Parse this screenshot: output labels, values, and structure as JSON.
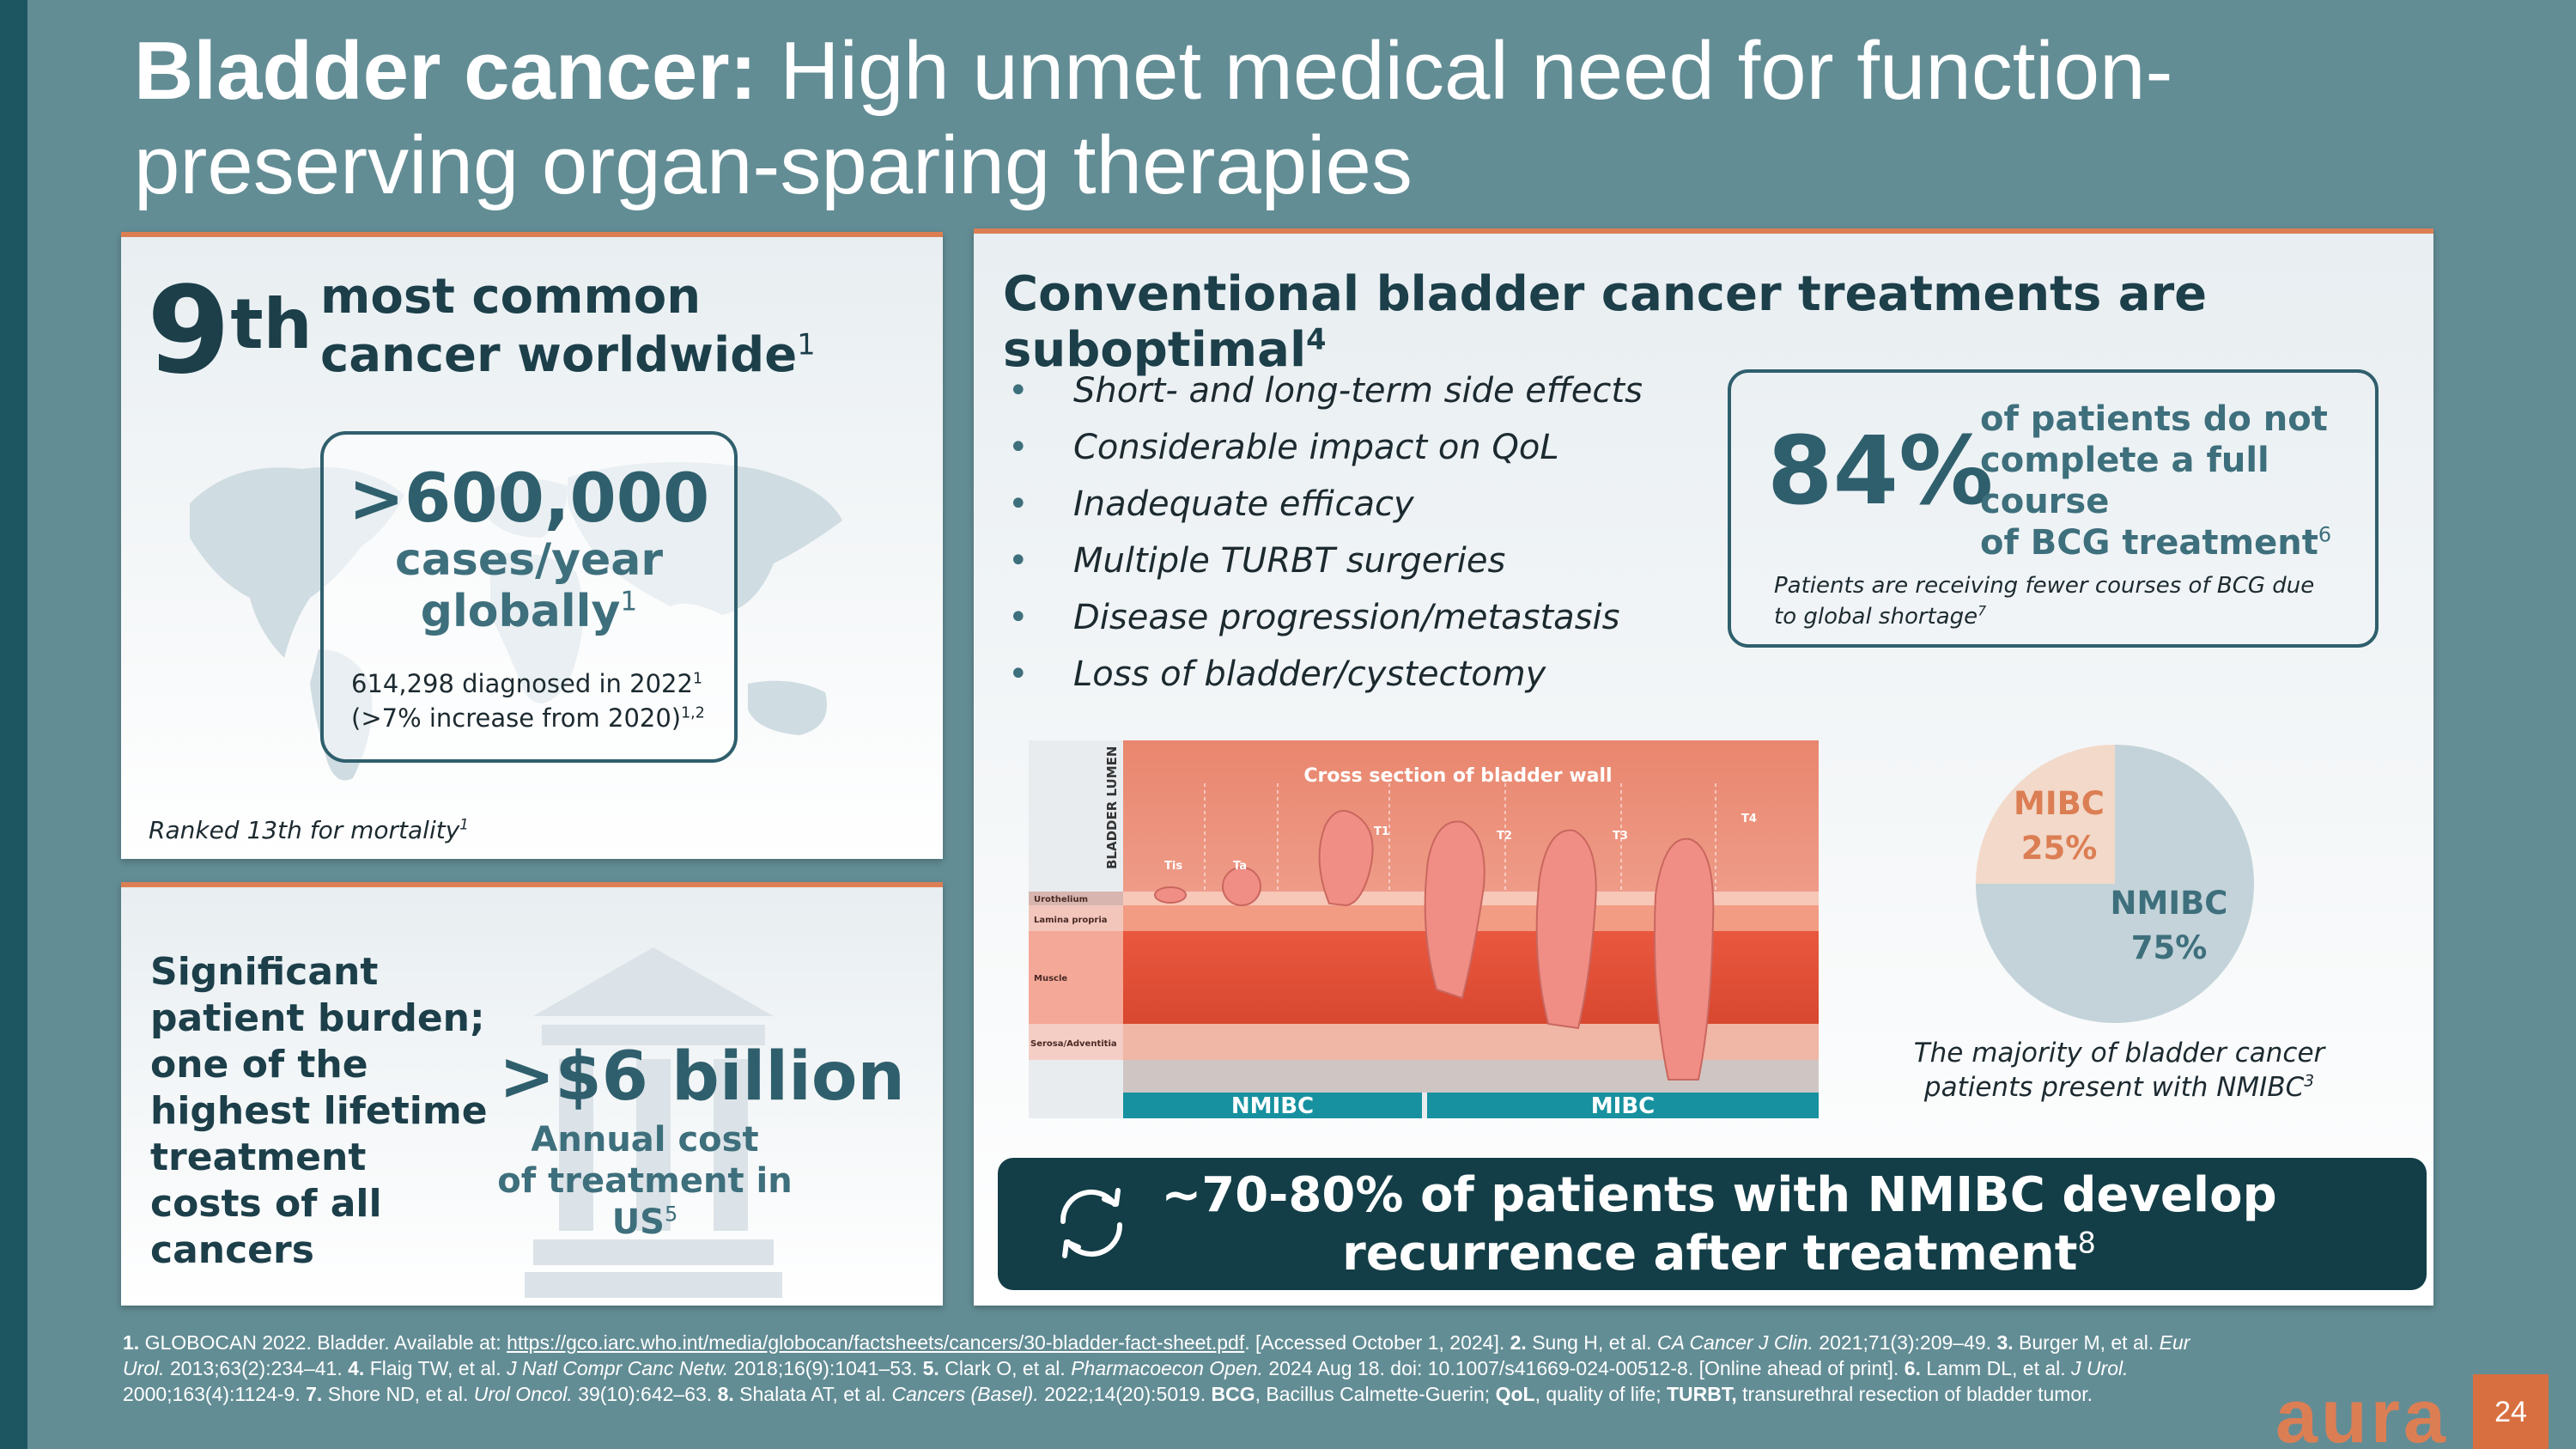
{
  "title": {
    "bold": "Bladder cancer:",
    "rest": " High unmet medical need for function-preserving organ-sparing therapies"
  },
  "panel1": {
    "rank_num": "9",
    "rank_suffix": "th",
    "most_common_l1": "most common",
    "most_common_l2": "cancer worldwide",
    "most_common_ref": "1",
    "cases_value": ">600,000",
    "cases_l1": "cases/year",
    "cases_l2": "globally",
    "cases_ref": "1",
    "diagnosed_l1": "614,298 diagnosed in 2022",
    "diagnosed_ref1": "1",
    "diagnosed_l2": "(>7% increase from 2020)",
    "diagnosed_ref2": "1,2",
    "mortality": "Ranked 13th for mortality",
    "mortality_ref": "1"
  },
  "panel2": {
    "burden_lines": [
      "Significant",
      "patient burden;",
      "one of the",
      "highest lifetime",
      "treatment",
      "costs of all",
      "cancers"
    ],
    "cost_value": ">$6 billion",
    "cost_l1": "Annual cost",
    "cost_l2": "of treatment in US",
    "cost_ref": "5"
  },
  "panel3": {
    "heading": "Conventional bladder cancer treatments are suboptimal",
    "heading_ref": "4",
    "bullets": [
      "Short- and long-term side effects",
      "Considerable impact on QoL",
      "Inadequate efficacy",
      "Multiple TURBT surgeries",
      "Disease progression/metastasis",
      "Loss of bladder/cystectomy"
    ],
    "bcg_pct": "84%",
    "bcg_l1": "of patients do not",
    "bcg_l2": "complete a full course",
    "bcg_l3": "of BCG treatment",
    "bcg_ref": "6",
    "shortage": "Patients are receiving fewer courses of BCG due to global shortage",
    "shortage_ref": "7",
    "diagram": {
      "title": "Cross section of bladder wall",
      "lumen": "BLADDER LUMEN",
      "layers": [
        "Urothelium",
        "Lamina propria",
        "Muscle",
        "Serosa/Adventitia"
      ],
      "stages": [
        "Tis",
        "Ta",
        "T1",
        "T2",
        "T3",
        "T4"
      ],
      "nmibc": "NMIBC",
      "mibc": "MIBC"
    },
    "majority_l1": "The majority of bladder cancer",
    "majority_l2": "patients present with NMIBC",
    "majority_ref": "3",
    "banner_l1": "~70-80% of patients with NMIBC develop",
    "banner_l2": "recurrence after treatment",
    "banner_ref": "8"
  },
  "chart_data": {
    "type": "pie",
    "categories": [
      "MIBC",
      "NMIBC"
    ],
    "values": [
      25,
      75
    ],
    "labels": [
      "25%",
      "75%"
    ],
    "colors": [
      "#f2d9c9",
      "#c3d3d9"
    ]
  },
  "references": {
    "r1": "1.",
    "r1_text": " GLOBOCAN 2022. Bladder. Available at: ",
    "r1_link": "https://gco.iarc.who.int/media/globocan/factsheets/cancers/30-bladder-fact-sheet.pdf",
    "r1_tail": ". [Accessed October 1, 2024]. ",
    "r2": "2.",
    "r2_text": " Sung H, et al. ",
    "r2_j": "CA Cancer J Clin.",
    "r2_tail": " 2021;71(3):209–49. ",
    "r3": "3.",
    "r3_text": " Burger M, et al. ",
    "r3_j": "Eur Urol.",
    "r3_tail": " 2013;63(2):234–41. ",
    "r4": "4.",
    "r4_text": " Flaig TW, et al. ",
    "r4_j": "J Natl Compr Canc Netw.",
    "r4_tail": " 2018;16(9):1041–53. ",
    "r5": "5.",
    "r5_text": " Clark O, et al. ",
    "r5_j": "Pharmacoecon Open.",
    "r5_tail": " 2024 Aug 18. doi: 10.1007/s41669-024-00512-8. [Online ahead of print]. ",
    "r6": "6.",
    "r6_text": " Lamm DL, et al. ",
    "r6_j": "J Urol.",
    "r6_tail": " 2000;163(4):1124-9. ",
    "r7": "7.",
    "r7_text": " Shore ND, et al. ",
    "r7_j": "Urol Oncol.",
    "r7_tail": " 39(10):642–63. ",
    "r8": "8.",
    "r8_text": " Shalata AT, et al. ",
    "r8_j": "Cancers (Basel).",
    "r8_tail": " 2022;14(20):5019. ",
    "abbr1": "BCG",
    "abbr1_text": ", Bacillus Calmette-Guerin; ",
    "abbr2": "QoL",
    "abbr2_text": ", quality of life; ",
    "abbr3": "TURBT,",
    "abbr3_text": " transurethral resection of bladder tumor."
  },
  "logo": "aura",
  "page_number": "24"
}
